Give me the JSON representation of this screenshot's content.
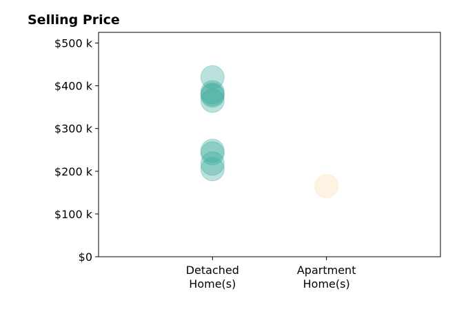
{
  "chart_data": {
    "type": "scatter",
    "title": "Selling Price",
    "xlabel": "",
    "ylabel": "",
    "categories": [
      [
        "Detached",
        "Home(s)"
      ],
      [
        "Apartment",
        "Home(s)"
      ]
    ],
    "xlim": [
      -1,
      2
    ],
    "ylim": [
      0,
      525000
    ],
    "yticks": [
      {
        "value": 0,
        "label": "$0"
      },
      {
        "value": 100000,
        "label": "$100 k"
      },
      {
        "value": 200000,
        "label": "$200 k"
      },
      {
        "value": 300000,
        "label": "$300 k"
      },
      {
        "value": 400000,
        "label": "$400 k"
      },
      {
        "value": 500000,
        "label": "$500 k"
      }
    ],
    "grid": false,
    "series": [
      {
        "category": 0,
        "color": "#3aa99a",
        "values": [
          420000,
          385000,
          380000,
          377000,
          365000,
          248000,
          242000,
          218000,
          205000
        ]
      },
      {
        "category": 1,
        "color": "#f5deb0",
        "values": [
          165000
        ]
      }
    ]
  }
}
